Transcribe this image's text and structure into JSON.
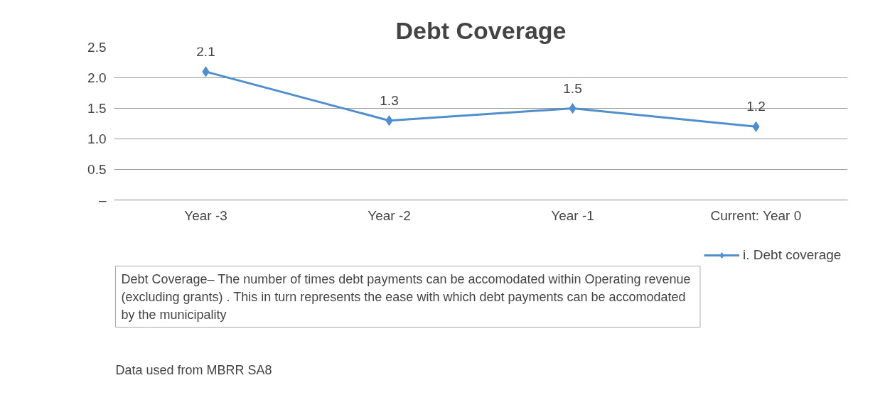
{
  "chart_data": {
    "type": "line",
    "title": "Debt Coverage",
    "categories": [
      "Year -3",
      "Year -2",
      "Year -1",
      "Current: Year 0"
    ],
    "series": [
      {
        "name": "i. Debt coverage",
        "color": "#4f8fd0",
        "values": [
          2.1,
          1.3,
          1.5,
          1.2
        ]
      }
    ],
    "ylim": [
      0,
      2.5
    ],
    "yticks": [
      {
        "value": 0,
        "label": "–"
      },
      0.5,
      {
        "value": 1,
        "label": "1.0"
      },
      1.5,
      {
        "value": 2,
        "label": "2.0"
      },
      2.5
    ],
    "grid": "y",
    "legend": "bottom right",
    "marker": "diamond",
    "line_style": "solid",
    "data_labels": true,
    "annotations": [
      "Debt Coverage–  The number of times debt payments can be accomodated within Operating revenue (excluding grants) .  This in turn represents the ease with which debt payments can be accomodated by the municipality",
      "Data used from MBRR SA8"
    ]
  }
}
